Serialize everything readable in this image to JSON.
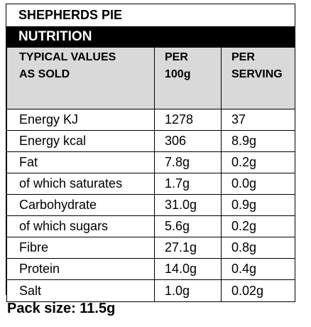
{
  "product": {
    "title": "SHEPHERDS PIE"
  },
  "nutrition": {
    "heading": "NUTRITION",
    "headers": {
      "col1_line1": "TYPICAL VALUES",
      "col1_line2": "AS SOLD",
      "col2_line1": "PER",
      "col2_line2": "100g",
      "col3_line1": "PER",
      "col3_line2": "SERVING"
    },
    "rows": [
      {
        "nutrient": "Energy KJ",
        "per_100g": "1278",
        "per_serving": "37"
      },
      {
        "nutrient": "Energy kcal",
        "per_100g": "306",
        "per_serving": "8.9g"
      },
      {
        "nutrient": "Fat",
        "per_100g": "7.8g",
        "per_serving": "0.2g"
      },
      {
        "nutrient": "of which saturates",
        "per_100g": "1.7g",
        "per_serving": "0.0g"
      },
      {
        "nutrient": "Carbohydrate",
        "per_100g": "31.0g",
        "per_serving": "0.9g"
      },
      {
        "nutrient": "of which sugars",
        "per_100g": "5.6g",
        "per_serving": "0.2g"
      },
      {
        "nutrient": "Fibre",
        "per_100g": "27.1g",
        "per_serving": "0.8g"
      },
      {
        "nutrient": "Protein",
        "per_100g": "14.0g",
        "per_serving": "0.4g"
      },
      {
        "nutrient": "Salt",
        "per_100g": "1.0g",
        "per_serving": "0.02g"
      }
    ]
  },
  "footer": {
    "pack_size": "Pack size: 11.5g"
  },
  "colors": {
    "header_bar": "#000000",
    "header_bar_text": "#ffffff",
    "column_header_bg": "#d9d9d9",
    "border": "#000000"
  }
}
